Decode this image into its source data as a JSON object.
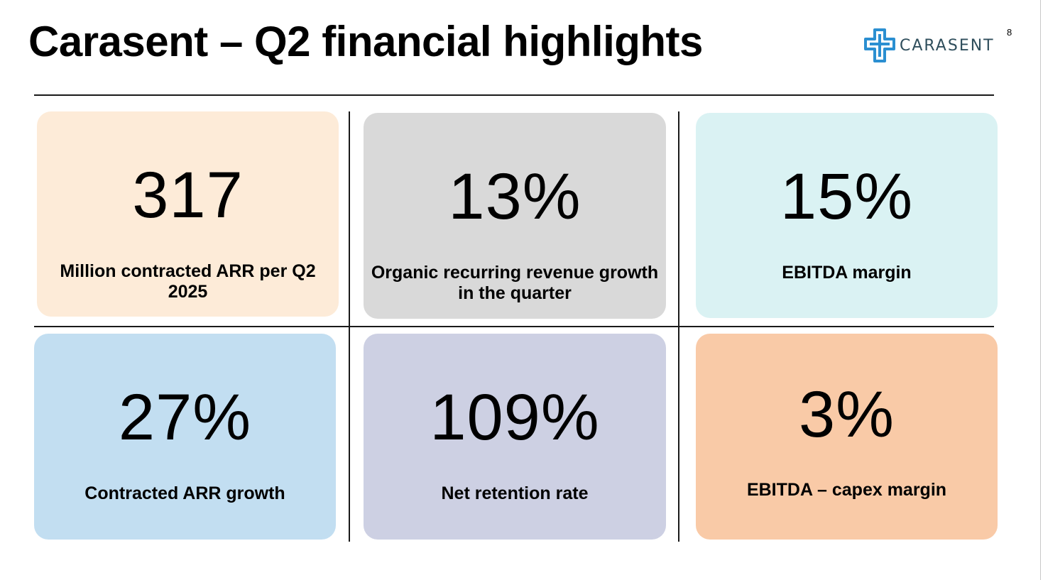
{
  "slide": {
    "title": "Carasent – Q2 financial highlights",
    "page_number": "8"
  },
  "logo": {
    "text": "CARASENT",
    "icon": "carasent-cross-logo-icon",
    "color": "#2f4e5c",
    "accent_color": "#2b8fd1"
  },
  "highlights": [
    {
      "value": "317",
      "label": "Million contracted ARR per Q2 2025",
      "color": "#fdebd8"
    },
    {
      "value": "13%",
      "label": "Organic recurring revenue growth in the quarter",
      "color": "#d9d9d9"
    },
    {
      "value": "15%",
      "label": "EBITDA margin",
      "color": "#daf2f3"
    },
    {
      "value": "27%",
      "label": "Contracted ARR growth",
      "color": "#c2def1"
    },
    {
      "value": "109%",
      "label": "Net retention rate",
      "color": "#cdd0e3"
    },
    {
      "value": "3%",
      "label": "EBITDA – capex margin",
      "color": "#f9caa7"
    }
  ]
}
